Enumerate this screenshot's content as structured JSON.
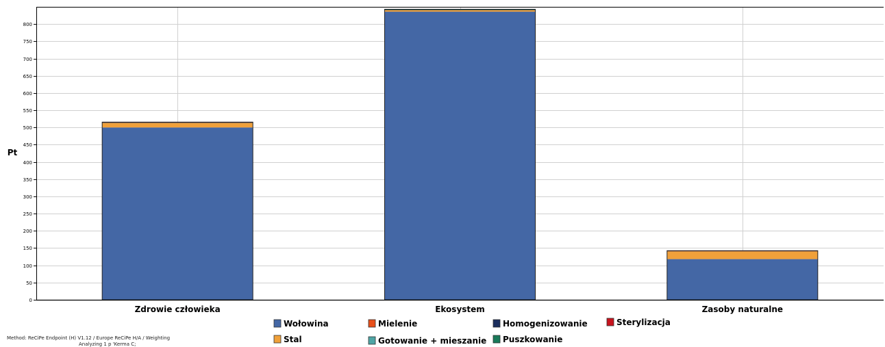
{
  "chart_data": {
    "type": "bar",
    "stacked": true,
    "ylabel": "Pt",
    "xlabel": "",
    "ylim": [
      0,
      850
    ],
    "yticks": [
      0,
      50,
      100,
      150,
      200,
      250,
      300,
      350,
      400,
      450,
      500,
      550,
      600,
      650,
      700,
      750,
      800
    ],
    "grid": true,
    "legend_position": "bottom",
    "categories": [
      "Zdrowie człowieka",
      "Ekosystem",
      "Zasoby naturalne"
    ],
    "series": [
      {
        "name": "Wołowina",
        "color": "#4467a5",
        "values": [
          500,
          836,
          118
        ]
      },
      {
        "name": "Stal",
        "color": "#f0a03a",
        "values": [
          13,
          4,
          23
        ]
      },
      {
        "name": "Mielenie",
        "color": "#e8501a",
        "values": [
          1,
          1,
          0.5
        ]
      },
      {
        "name": "Gotowanie + mieszanie",
        "color": "#4fa5a5",
        "values": [
          0.5,
          0.5,
          0.3
        ]
      },
      {
        "name": "Homogenizowanie",
        "color": "#1c2f5e",
        "values": [
          0.3,
          0.3,
          0.2
        ]
      },
      {
        "name": "Puszkowanie",
        "color": "#1a7a5a",
        "values": [
          0.3,
          0.3,
          0.2
        ]
      },
      {
        "name": "Sterylizacja",
        "color": "#c8141e",
        "values": [
          0.5,
          1,
          0.3
        ]
      }
    ]
  },
  "footer": {
    "method": "Method: ReCiPe Endpoint (H) V1.12 / Europe ReCiPe H/A / Weighting",
    "analyzing": "Analyzing 1 p 'Kerma C;"
  }
}
